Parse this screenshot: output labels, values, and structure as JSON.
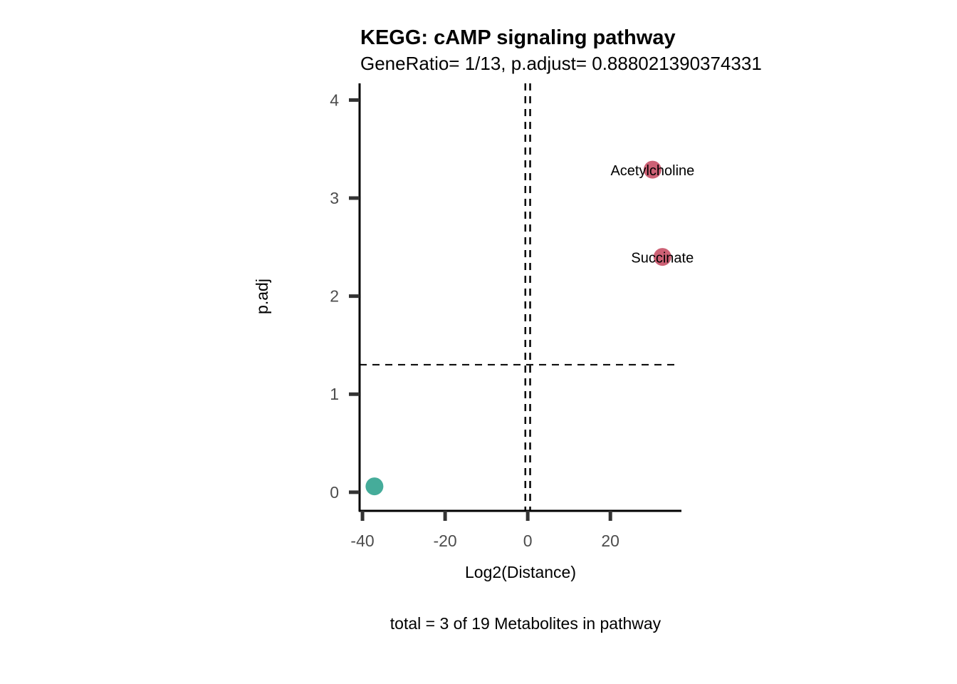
{
  "chart_data": {
    "type": "scatter",
    "title": "KEGG: cAMP signaling pathway",
    "subtitle": "GeneRatio= 1/13, p.adjust= 0.888021390374331",
    "xlabel": "Log2(Distance)",
    "ylabel": "p.adj",
    "caption": "total = 3 of 19 Metabolites in pathway",
    "xlim": [
      -40.7,
      37.2
    ],
    "ylim": [
      -0.19,
      4.17
    ],
    "xticks": [
      -40,
      -20,
      0,
      20
    ],
    "yticks": [
      0,
      1,
      2,
      3,
      4
    ],
    "grid": false,
    "hline": 1.301,
    "vlines": [
      -0.58,
      0.58
    ],
    "points": [
      {
        "label": "",
        "x": -37.1,
        "y": 0.06,
        "color": "#45AC9A"
      },
      {
        "label": "Acetylcholine",
        "x": 30.2,
        "y": 3.29,
        "color": "#CD6175"
      },
      {
        "label": "Succinate",
        "x": 32.6,
        "y": 2.4,
        "color": "#CD6175"
      }
    ]
  }
}
